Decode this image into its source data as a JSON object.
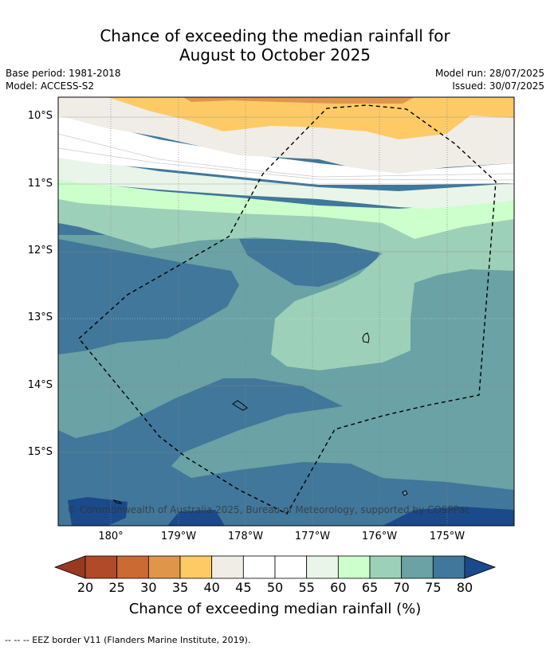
{
  "title": {
    "line1": "Chance of exceeding the median rainfall for",
    "line2": "August to October 2025"
  },
  "meta": {
    "base_period": "Base period: 1981-2018",
    "model": "Model: ACCESS-S2",
    "model_run": "Model run: 28/07/2025",
    "issued": "Issued: 30/07/2025"
  },
  "map": {
    "lat_labels": [
      "10°S",
      "11°S",
      "12°S",
      "13°S",
      "14°S",
      "15°S"
    ],
    "lon_labels": [
      "180°",
      "179°W",
      "178°W",
      "177°W",
      "176°W",
      "175°W"
    ],
    "copyright": "© Commonwealth of Australia 2025, Bureau of Meteorology, supported by COSPPac"
  },
  "colorbar": {
    "labels": [
      "20",
      "25",
      "30",
      "35",
      "40",
      "45",
      "50",
      "55",
      "60",
      "65",
      "70",
      "75",
      "80"
    ],
    "colors": [
      "#b04a28",
      "#cc6a34",
      "#e0964a",
      "#fdca66",
      "#f0ece6",
      "#ffffff",
      "#ffffff",
      "#e9f5e8",
      "#ccffcc",
      "#9dd0b8",
      "#6aa2a5",
      "#41779a"
    ],
    "under_color": "#963a22",
    "over_color": "#1a4a8a",
    "title": "Chance of exceeding median rainfall (%)"
  },
  "footnote": "--  --  -- EEZ border V11 (Flanders Marine Institute, 2019)."
}
